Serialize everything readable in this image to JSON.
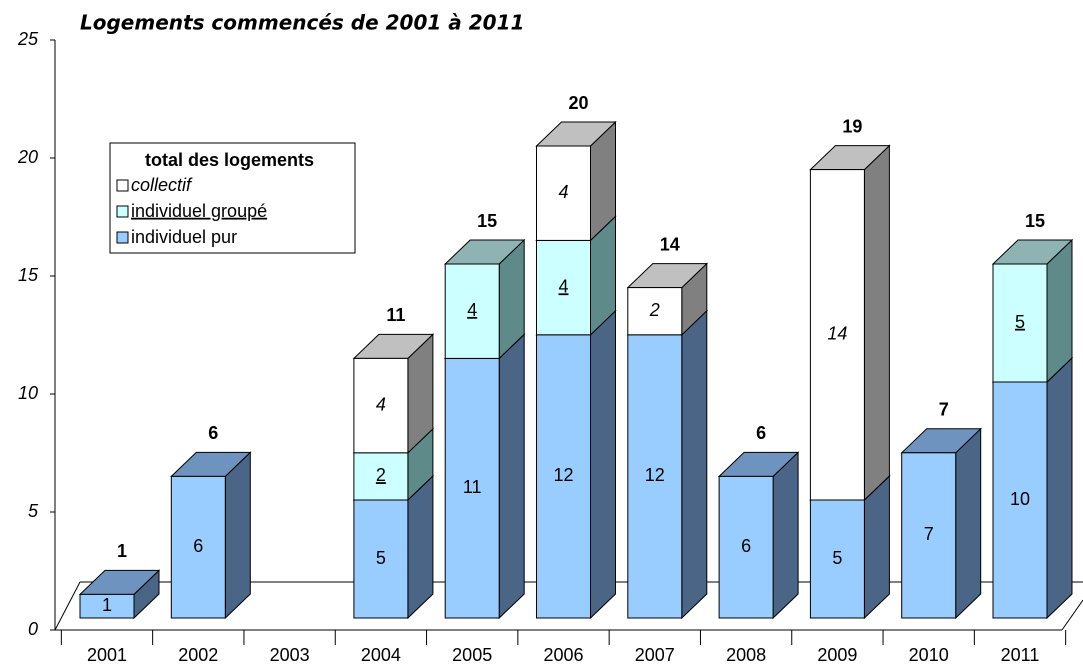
{
  "chart_data": {
    "type": "bar3d-stacked",
    "title": "Logements commencés de 2001 à 2011",
    "categories": [
      "2001",
      "2002",
      "2003",
      "2004",
      "2005",
      "2006",
      "2007",
      "2008",
      "2009",
      "2010",
      "2011"
    ],
    "legend_title": "total des logements",
    "series": [
      {
        "name": "individuel pur",
        "color": "#99ccff",
        "values": [
          1,
          6,
          null,
          5,
          11,
          12,
          12,
          6,
          5,
          7,
          10
        ]
      },
      {
        "name": "individuel groupé",
        "color": "#ccffff",
        "values": [
          null,
          null,
          null,
          2,
          4,
          4,
          null,
          null,
          null,
          null,
          5
        ]
      },
      {
        "name": "collectif",
        "color": "#ffffff",
        "values": [
          null,
          null,
          null,
          4,
          null,
          4,
          2,
          null,
          14,
          null,
          null
        ]
      }
    ],
    "totals": [
      1,
      6,
      null,
      11,
      15,
      20,
      14,
      6,
      19,
      7,
      15
    ],
    "ylim": [
      0,
      25
    ],
    "yticks": [
      0,
      5,
      10,
      15,
      20,
      25
    ]
  }
}
